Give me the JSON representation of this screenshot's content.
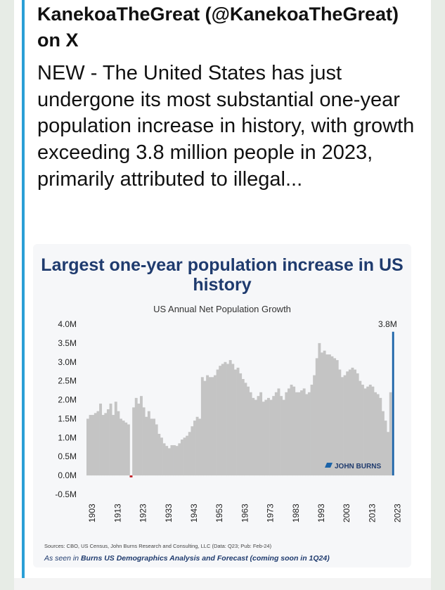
{
  "post": {
    "author": "KanekoaTheGreat (@KanekoaTheGreat) on X",
    "text": "NEW - The United States has just undergone its most substantial one-year population increase in history, with growth exceeding 3.8 million people in 2023, primarily attributed to illegal..."
  },
  "chart_data": {
    "type": "bar",
    "title": "Largest one-year population increase in US history",
    "subtitle": "US Annual Net Population Growth",
    "ylabel": "",
    "xlabel": "",
    "ylim": [
      -0.5,
      4.0
    ],
    "y_ticks": [
      "4.0M",
      "3.5M",
      "3.0M",
      "2.5M",
      "2.0M",
      "1.5M",
      "1.0M",
      "0.5M",
      "0.0M",
      "-0.5M"
    ],
    "x_ticks": [
      "1903",
      "1913",
      "1923",
      "1933",
      "1943",
      "1953",
      "1963",
      "1973",
      "1983",
      "1993",
      "2003",
      "2013",
      "2023"
    ],
    "highlight_label": "3.8M",
    "colors": {
      "bars": "#c4c4c4",
      "highlight": "#1b63a8",
      "negative": "#c0171e",
      "title": "#1f3b6e"
    },
    "logo_text": "JOHN BURNS",
    "x_start": 1901,
    "values_millions": [
      1.5,
      1.6,
      1.6,
      1.65,
      1.7,
      1.9,
      1.6,
      1.65,
      1.75,
      1.9,
      1.6,
      1.95,
      1.7,
      1.5,
      1.45,
      1.4,
      1.35,
      -0.05,
      1.8,
      2.05,
      1.9,
      2.1,
      1.8,
      1.55,
      1.7,
      1.5,
      1.5,
      1.35,
      1.1,
      1.0,
      0.85,
      0.78,
      0.72,
      0.8,
      0.8,
      0.78,
      0.85,
      0.95,
      1.0,
      1.05,
      1.15,
      1.3,
      1.45,
      1.55,
      1.5,
      2.6,
      2.5,
      2.65,
      2.6,
      2.6,
      2.65,
      2.8,
      2.9,
      2.95,
      3.0,
      2.95,
      3.05,
      2.95,
      2.8,
      2.85,
      2.7,
      2.55,
      2.45,
      2.35,
      2.2,
      2.05,
      2.0,
      2.1,
      2.2,
      1.95,
      2.0,
      2.05,
      2.0,
      2.1,
      2.2,
      2.3,
      2.1,
      2.0,
      2.2,
      2.3,
      2.4,
      2.35,
      2.2,
      2.2,
      2.25,
      2.3,
      2.15,
      2.2,
      2.4,
      2.65,
      3.1,
      3.5,
      3.25,
      3.3,
      3.2,
      3.2,
      3.15,
      3.1,
      3.05,
      2.8,
      2.6,
      2.65,
      2.75,
      2.8,
      2.85,
      2.8,
      2.7,
      2.5,
      2.4,
      2.3,
      2.35,
      2.4,
      2.35,
      2.2,
      2.15,
      2.05,
      1.7,
      1.45,
      1.15,
      2.2,
      3.8
    ]
  },
  "footer": {
    "sources": "Sources: CBO, US Census, John Burns Research and Consulting, LLC (Data: Q23; Pub: Feb-24)",
    "seen_prefix": "As seen in ",
    "seen_bold": "Burns US Demographics Analysis and Forecast (coming soon in 1Q24)"
  }
}
